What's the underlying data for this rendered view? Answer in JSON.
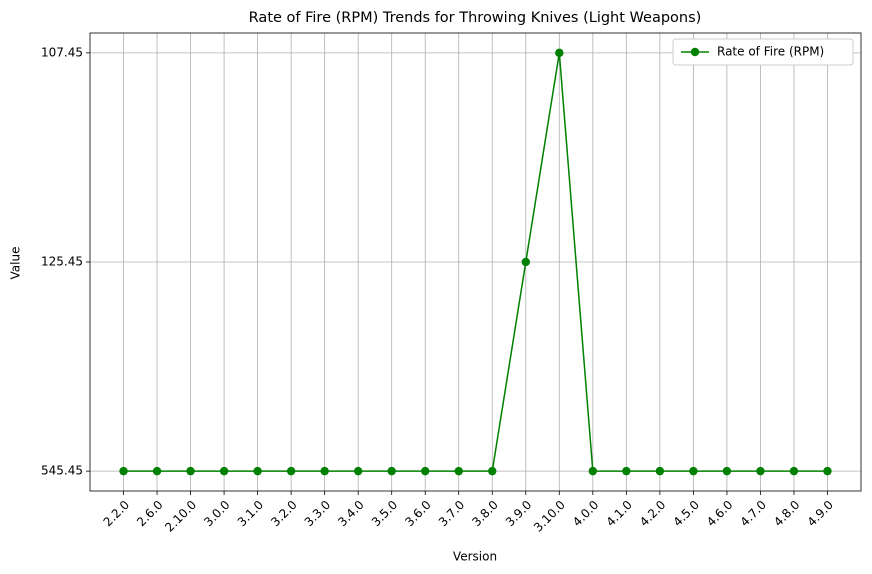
{
  "chart_data": {
    "type": "line",
    "title": "Rate of Fire (RPM) Trends for Throwing Knives (Light Weapons)",
    "xlabel": "Version",
    "ylabel": "Value",
    "categories": [
      "2.2.0",
      "2.6.0",
      "2.10.0",
      "3.0.0",
      "3.1.0",
      "3.2.0",
      "3.3.0",
      "3.4.0",
      "3.5.0",
      "3.6.0",
      "3.7.0",
      "3.8.0",
      "3.9.0",
      "3.10.0",
      "4.0.0",
      "4.1.0",
      "4.2.0",
      "4.5.0",
      "4.6.0",
      "4.7.0",
      "4.8.0",
      "4.9.0"
    ],
    "yticks": [
      545.45,
      125.45,
      107.45
    ],
    "series": [
      {
        "name": "Rate of Fire (RPM)",
        "color": "#008000",
        "values": [
          545.45,
          545.45,
          545.45,
          545.45,
          545.45,
          545.45,
          545.45,
          545.45,
          545.45,
          545.45,
          545.45,
          545.45,
          125.45,
          107.45,
          545.45,
          545.45,
          545.45,
          545.45,
          545.45,
          545.45,
          545.45,
          545.45
        ]
      }
    ],
    "grid": true,
    "legend": "upper right"
  }
}
